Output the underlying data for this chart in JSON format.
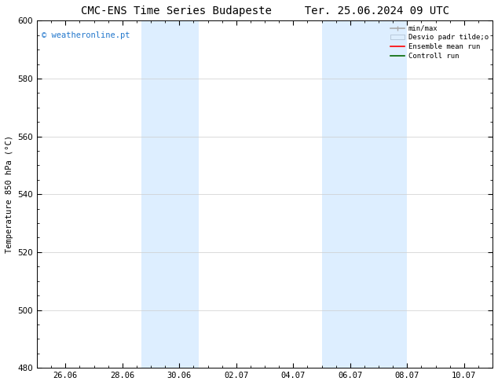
{
  "title": "CMC-ENS Time Series Budapeste",
  "title2": "Ter. 25.06.2024 09 UTC",
  "ylabel": "Temperature 850 hPa (°C)",
  "ylim": [
    480,
    600
  ],
  "yticks": [
    480,
    500,
    520,
    540,
    560,
    580,
    600
  ],
  "xlim": [
    0,
    16
  ],
  "xtick_labels": [
    "26.06",
    "28.06",
    "30.06",
    "02.07",
    "04.07",
    "06.07",
    "08.07",
    "10.07"
  ],
  "xtick_positions": [
    1,
    3,
    5,
    7,
    9,
    11,
    13,
    15
  ],
  "band1_x1": 3.67,
  "band1_x2": 5.67,
  "band2_x1": 10.0,
  "band2_x2": 13.0,
  "band_color": "#ddeeff",
  "watermark": "© weatheronline.pt",
  "watermark_color": "#2277cc",
  "background_color": "#ffffff",
  "plot_bg_color": "#ffffff",
  "grid_color": "#cccccc",
  "title_fontsize": 10,
  "tick_fontsize": 7.5,
  "ylabel_fontsize": 7.5
}
